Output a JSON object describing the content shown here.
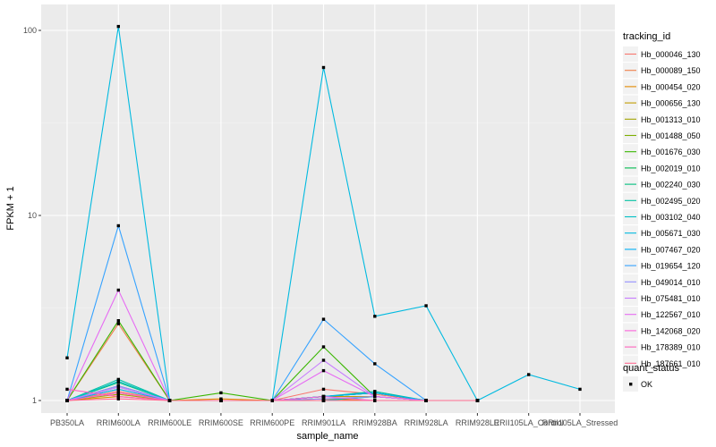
{
  "chart_data": {
    "type": "line",
    "xlabel": "sample_name",
    "ylabel": "FPKM + 1",
    "y_scale": "log10",
    "ylim": [
      0.95,
      130
    ],
    "y_ticks": [
      1,
      10,
      100
    ],
    "y_tick_labels": [
      "1",
      "10",
      "100"
    ],
    "panel_background": "#ebebeb",
    "grid": true,
    "legend_position": "right",
    "categories": [
      "PB350LA",
      "RRIM600LA",
      "RRIM600LE",
      "RRIM600SE",
      "RRIM600PE",
      "RRIM901LA",
      "RRIM928BA",
      "RRIM928LA",
      "RRIM928LE",
      "RRII105LA_Control",
      "RRII105LA_Stressed"
    ],
    "legend_color_title": "tracking_id",
    "legend_shape_title": "quant_status",
    "legend_shape_items": [
      {
        "label": "OK",
        "marker": "square"
      }
    ],
    "series": [
      {
        "name": "Hb_000046_130",
        "color": "#F8766D",
        "values": [
          1.0,
          1.12,
          1.0,
          1.0,
          1.0,
          1.15,
          1.08,
          1.0,
          1.0,
          null,
          null
        ]
      },
      {
        "name": "Hb_000089_150",
        "color": "#EF7F49",
        "values": [
          1.0,
          2.6,
          1.0,
          1.0,
          1.0,
          1.0,
          1.0,
          1.0,
          1.0,
          null,
          null
        ]
      },
      {
        "name": "Hb_000454_020",
        "color": "#E38900",
        "values": [
          1.0,
          1.05,
          1.0,
          1.02,
          1.0,
          1.02,
          1.0,
          1.0,
          1.0,
          null,
          null
        ]
      },
      {
        "name": "Hb_000656_130",
        "color": "#C09B00",
        "values": [
          1.0,
          1.1,
          1.0,
          1.0,
          1.0,
          1.05,
          1.05,
          1.0,
          1.0,
          null,
          null
        ]
      },
      {
        "name": "Hb_001313_010",
        "color": "#A3A500",
        "values": [
          1.0,
          1.08,
          1.0,
          1.0,
          1.0,
          1.0,
          1.05,
          1.0,
          1.0,
          null,
          null
        ]
      },
      {
        "name": "Hb_001488_050",
        "color": "#7CAE00",
        "values": [
          1.0,
          1.15,
          1.0,
          1.0,
          1.0,
          1.05,
          1.1,
          1.0,
          1.0,
          null,
          null
        ]
      },
      {
        "name": "Hb_001676_030",
        "color": "#39B600",
        "values": [
          1.0,
          2.7,
          1.0,
          1.1,
          1.0,
          1.95,
          1.05,
          1.0,
          1.0,
          null,
          null
        ]
      },
      {
        "name": "Hb_002019_010",
        "color": "#00BB4E",
        "values": [
          1.0,
          1.2,
          1.0,
          1.0,
          1.0,
          1.05,
          1.1,
          1.0,
          1.0,
          null,
          null
        ]
      },
      {
        "name": "Hb_002240_030",
        "color": "#00BF7D",
        "values": [
          1.0,
          1.25,
          1.0,
          1.0,
          1.0,
          1.05,
          1.1,
          1.0,
          1.0,
          null,
          null
        ]
      },
      {
        "name": "Hb_002495_020",
        "color": "#00C1A3",
        "values": [
          1.0,
          1.3,
          1.0,
          1.0,
          1.0,
          1.05,
          1.12,
          1.0,
          1.0,
          null,
          null
        ]
      },
      {
        "name": "Hb_003102_040",
        "color": "#00BFC4",
        "values": [
          1.0,
          1.27,
          1.0,
          1.0,
          1.0,
          1.0,
          1.05,
          1.0,
          1.0,
          null,
          null
        ]
      },
      {
        "name": "Hb_005671_030",
        "color": "#00BAE0",
        "values": [
          1.7,
          105.0,
          1.0,
          1.0,
          1.0,
          63.0,
          2.85,
          3.25,
          1.0,
          1.38,
          1.15
        ]
      },
      {
        "name": "Hb_007467_020",
        "color": "#00B0F6",
        "values": [
          1.0,
          1.15,
          1.0,
          1.0,
          1.0,
          1.05,
          1.1,
          1.0,
          1.0,
          null,
          null
        ]
      },
      {
        "name": "Hb_019654_120",
        "color": "#35A2FF",
        "values": [
          1.0,
          8.8,
          1.0,
          1.0,
          1.0,
          2.75,
          1.58,
          1.0,
          1.0,
          null,
          null
        ]
      },
      {
        "name": "Hb_049014_010",
        "color": "#9590FF",
        "values": [
          1.0,
          1.2,
          1.0,
          1.0,
          1.0,
          1.02,
          1.05,
          1.0,
          1.0,
          null,
          null
        ]
      },
      {
        "name": "Hb_075481_010",
        "color": "#C77CFF",
        "values": [
          1.0,
          1.18,
          1.0,
          1.0,
          1.0,
          1.65,
          1.05,
          1.0,
          1.0,
          null,
          null
        ]
      },
      {
        "name": "Hb_122567_010",
        "color": "#E76BF3",
        "values": [
          1.0,
          3.95,
          1.0,
          1.0,
          1.0,
          1.45,
          1.05,
          1.0,
          1.0,
          null,
          null
        ]
      },
      {
        "name": "Hb_142068_020",
        "color": "#FA62DB",
        "values": [
          1.0,
          1.1,
          1.0,
          1.0,
          1.0,
          1.05,
          1.0,
          1.0,
          1.0,
          null,
          null
        ]
      },
      {
        "name": "Hb_178389_010",
        "color": "#FF62BC",
        "values": [
          1.15,
          1.05,
          1.0,
          1.0,
          1.0,
          1.0,
          1.0,
          1.0,
          1.0,
          null,
          null
        ]
      },
      {
        "name": "Hb_187661_010",
        "color": "#FF6C91",
        "values": [
          1.0,
          1.02,
          1.0,
          1.0,
          1.0,
          1.0,
          1.0,
          1.0,
          1.0,
          null,
          null
        ]
      }
    ]
  }
}
